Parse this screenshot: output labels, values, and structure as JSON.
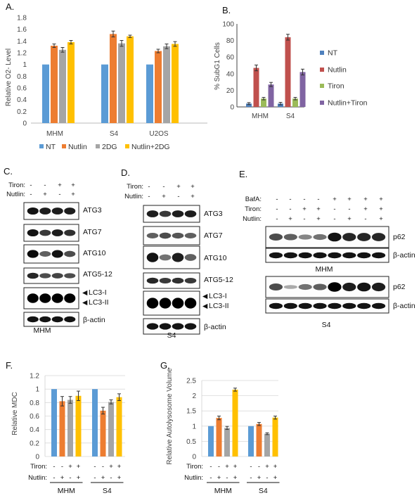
{
  "panels": {
    "A": {
      "letter": "A.",
      "chart_data": {
        "type": "bar",
        "categories": [
          "MHM",
          "S4",
          "U2OS"
        ],
        "series": [
          {
            "name": "NT",
            "values": [
              1.0,
              1.0,
              1.0
            ],
            "errors": [
              0,
              0,
              0
            ]
          },
          {
            "name": "Nutlin",
            "values": [
              1.32,
              1.52,
              1.23
            ],
            "errors": [
              0.03,
              0.05,
              0.03
            ]
          },
          {
            "name": "2DG",
            "values": [
              1.25,
              1.36,
              1.31
            ],
            "errors": [
              0.04,
              0.05,
              0.04
            ]
          },
          {
            "name": "Nutlin+2DG",
            "values": [
              1.38,
              1.48,
              1.35
            ],
            "errors": [
              0.03,
              0.02,
              0.04
            ]
          }
        ],
        "ylabel": "Relative O2- Level",
        "ylim": [
          0,
          1.8
        ],
        "yticks": [
          "0",
          "0.2",
          "0.4",
          "0.6",
          "0.8",
          "1",
          "1.2",
          "1.4",
          "1.6",
          "1.8"
        ],
        "grid": false,
        "legend": "bottom"
      }
    },
    "B": {
      "letter": "B.",
      "chart_data": {
        "type": "bar",
        "categories": [
          "MHM",
          "S4"
        ],
        "series": [
          {
            "name": "NT",
            "values": [
              4,
              4
            ],
            "errors": [
              1.2,
              1.5
            ]
          },
          {
            "name": "Nutlin",
            "values": [
              47,
              84
            ],
            "errors": [
              3.5,
              3.5
            ]
          },
          {
            "name": "Tiron",
            "values": [
              10,
              10
            ],
            "errors": [
              1.5,
              1.5
            ]
          },
          {
            "name": "Nutlin+Tiron",
            "values": [
              27,
              42
            ],
            "errors": [
              2.5,
              3.5
            ]
          }
        ],
        "ylabel": "% SubG1 Cells",
        "ylim": [
          0,
          100
        ],
        "yticks": [
          "0",
          "20",
          "40",
          "60",
          "80",
          "100"
        ],
        "grid": false,
        "legend": "right"
      }
    },
    "C": {
      "letter": "C.",
      "row_labels": [
        "Tiron:",
        "Nutlin:"
      ],
      "tiron": [
        "-",
        "-",
        "+",
        "+"
      ],
      "nutlin": [
        "-",
        "+",
        "-",
        "+"
      ],
      "bands": [
        "ATG3",
        "ATG7",
        "ATG10",
        "ATG5-12",
        "LC3-I",
        "LC3-II",
        "β-actin"
      ],
      "cell_line": "MHM"
    },
    "D": {
      "letter": "D.",
      "row_labels": [
        "Tiron:",
        "Nutlin:"
      ],
      "tiron": [
        "-",
        "-",
        "+",
        "+"
      ],
      "nutlin": [
        "-",
        "+",
        "-",
        "+"
      ],
      "bands": [
        "ATG3",
        "ATG7",
        "ATG10",
        "ATG5-12",
        "LC3-I",
        "LC3-II",
        "β-actin"
      ],
      "cell_line": "S4"
    },
    "E": {
      "letter": "E.",
      "row_labels": [
        "BafA:",
        "Tiron:",
        "Nutlin:"
      ],
      "bafa": [
        "-",
        "-",
        "-",
        "-",
        "+",
        "+",
        "+",
        "+"
      ],
      "tiron": [
        "-",
        "-",
        "+",
        "+",
        "-",
        "-",
        "+",
        "+"
      ],
      "nutlin": [
        "-",
        "+",
        "-",
        "+",
        "-",
        "+",
        "-",
        "+"
      ],
      "bands": [
        "p62",
        "β-actin",
        "p62",
        "β-actin"
      ],
      "cell_lines": [
        "MHM",
        "S4"
      ]
    },
    "F": {
      "letter": "F.",
      "chart_data": {
        "type": "bar",
        "categories": [
          "MHM",
          "S4"
        ],
        "series": [
          {
            "values": [
              1.0,
              1.0
            ],
            "errors": [
              0,
              0
            ]
          },
          {
            "values": [
              0.82,
              0.68
            ],
            "errors": [
              0.07,
              0.05
            ]
          },
          {
            "values": [
              0.84,
              0.81
            ],
            "errors": [
              0.05,
              0.03
            ]
          },
          {
            "values": [
              0.9,
              0.88
            ],
            "errors": [
              0.07,
              0.05
            ]
          }
        ],
        "ylabel": "Relative MDC",
        "ylim": [
          0,
          1.2
        ],
        "yticks": [
          "0",
          "0.2",
          "0.4",
          "0.6",
          "0.8",
          "1",
          "1.2"
        ],
        "grid": true
      },
      "row_labels": [
        "Tiron:",
        "Nutlin:"
      ],
      "tiron": [
        "-",
        "-",
        "+",
        "+"
      ],
      "nutlin": [
        "-",
        "+",
        "-",
        "+"
      ]
    },
    "G": {
      "letter": "G.",
      "chart_data": {
        "type": "bar",
        "categories": [
          "MHM",
          "S4"
        ],
        "series": [
          {
            "values": [
              1.0,
              1.0
            ],
            "errors": [
              0,
              0
            ]
          },
          {
            "values": [
              1.27,
              1.07
            ],
            "errors": [
              0.06,
              0.05
            ]
          },
          {
            "values": [
              0.94,
              0.75
            ],
            "errors": [
              0.05,
              0.03
            ]
          },
          {
            "values": [
              2.2,
              1.28
            ],
            "errors": [
              0.05,
              0.05
            ]
          }
        ],
        "ylabel": "Relative Autolysosome Volume",
        "ylim": [
          0,
          2.5
        ],
        "yticks": [
          "0",
          "0.5",
          "1",
          "1.5",
          "2",
          "2.5"
        ],
        "grid": true
      },
      "row_labels": [
        "Tiron:",
        "Nutlin:"
      ],
      "tiron": [
        "-",
        "-",
        "+",
        "+"
      ],
      "nutlin": [
        "-",
        "+",
        "-",
        "+"
      ]
    }
  },
  "colors": {
    "blue": "#5b9bd5",
    "orange": "#ed7d31",
    "gray": "#a5a5a5",
    "yellow": "#ffc000",
    "b_blue": "#4f81bd",
    "b_red": "#c0504d",
    "b_green": "#9bbb59",
    "b_purple": "#8064a2"
  }
}
